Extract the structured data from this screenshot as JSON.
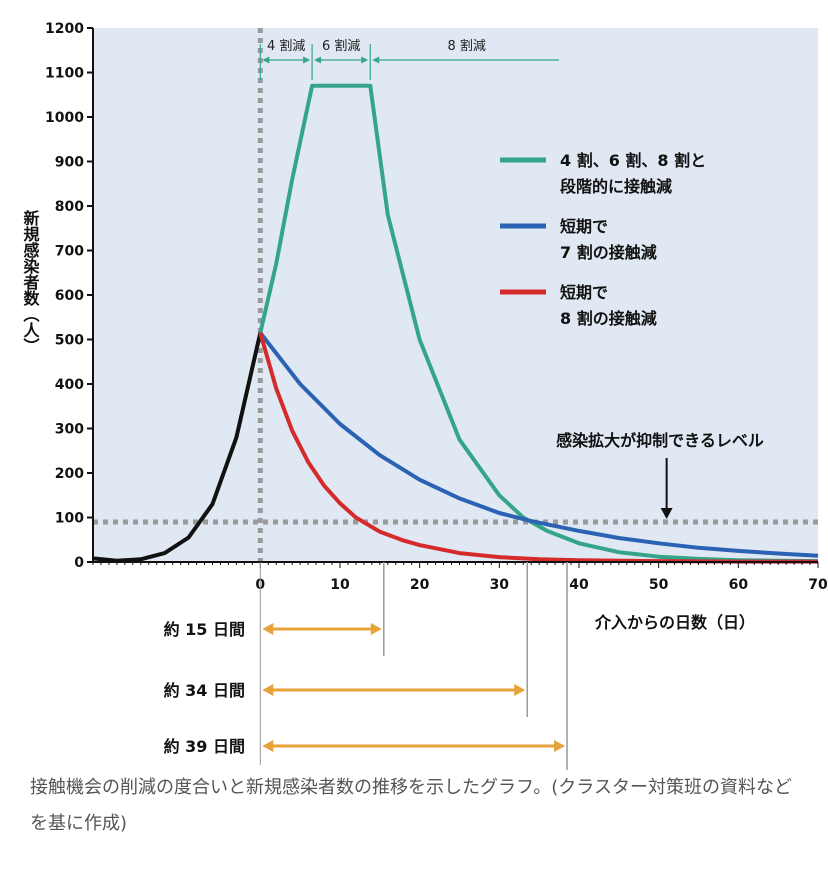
{
  "chart_data": {
    "type": "line",
    "ylabel": "新規感染者数（人）",
    "xlabel": "介入からの日数（日）",
    "xlim": [
      -21,
      70
    ],
    "ylim": [
      0,
      1200
    ],
    "x_ticks": [
      0,
      10,
      20,
      30,
      40,
      50,
      60,
      70
    ],
    "y_ticks": [
      0,
      100,
      200,
      300,
      400,
      500,
      600,
      700,
      800,
      900,
      1000,
      1100,
      1200
    ],
    "background": "#dfe8f3",
    "pre_intervention": {
      "color": "#111111",
      "x": [
        -21,
        -18,
        -15,
        -12,
        -9,
        -6,
        -3,
        0
      ],
      "y": [
        8,
        3,
        6,
        20,
        55,
        130,
        280,
        515
      ]
    },
    "series": [
      {
        "name": "4 割、6 割、8 割と段階的に接触減",
        "color": "#35a58a",
        "x": [
          0,
          2,
          4,
          6.5,
          13.8,
          16,
          20,
          25,
          30,
          33,
          36,
          40,
          45,
          50,
          55,
          60,
          65,
          70
        ],
        "y": [
          515,
          670,
          860,
          1070,
          1070,
          780,
          500,
          275,
          150,
          100,
          70,
          42,
          22,
          12,
          7,
          4,
          3,
          2
        ]
      },
      {
        "name": "短期で7 割の接触減",
        "color": "#2b62b3",
        "x": [
          0,
          5,
          10,
          15,
          20,
          25,
          30,
          34,
          40,
          45,
          50,
          55,
          60,
          65,
          70
        ],
        "y": [
          515,
          400,
          310,
          240,
          185,
          143,
          110,
          92,
          70,
          54,
          42,
          32,
          25,
          19,
          14
        ]
      },
      {
        "name": "短期で8 割の接触減",
        "color": "#d42a2a",
        "x": [
          0,
          2,
          4,
          6,
          8,
          10,
          12,
          15,
          18,
          20,
          25,
          30,
          35,
          40,
          50,
          60,
          70
        ],
        "y": [
          515,
          390,
          295,
          225,
          172,
          132,
          100,
          68,
          48,
          38,
          20,
          11,
          6,
          4,
          2,
          1,
          1
        ]
      }
    ],
    "threshold": {
      "value": 90,
      "label": "感染拡大が抑制できるレベル",
      "arrow_x": 51
    },
    "phases": [
      {
        "label": "4 割減",
        "from": 0,
        "to": 6.5
      },
      {
        "label": "6 割減",
        "from": 6.5,
        "to": 13.8
      },
      {
        "label": "8 割減",
        "from": 13.8,
        "to": 38
      }
    ],
    "durations": [
      {
        "label": "約 15 日間",
        "end": 15.5
      },
      {
        "label": "約 34 日間",
        "end": 33.5
      },
      {
        "label": "約 39 日間",
        "end": 38.5
      }
    ],
    "arrow_color": "#e8a23a",
    "legend": [
      {
        "lines": [
          "4 割、6 割、8 割と",
          "段階的に接触減"
        ],
        "color": "#35a58a"
      },
      {
        "lines": [
          "短期で",
          "7 割の接触減"
        ],
        "color": "#2b62b3"
      },
      {
        "lines": [
          "短期で",
          "8 割の接触減"
        ],
        "color": "#d42a2a"
      }
    ]
  },
  "caption": "接触機会の削減の度合いと新規感染者数の推移を示したグラフ。(クラスター対策班の資料などを基に作成)"
}
